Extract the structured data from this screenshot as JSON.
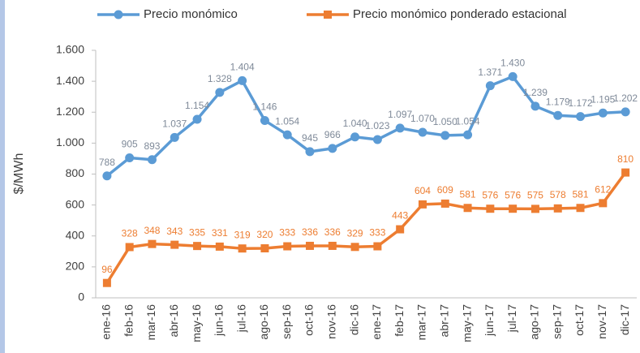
{
  "chart_data": {
    "type": "line",
    "y_label": "$/MWh",
    "categories": [
      "ene-16",
      "feb-16",
      "mar-16",
      "abr-16",
      "may-16",
      "jun-16",
      "jul-16",
      "ago-16",
      "sep-16",
      "oct-16",
      "nov-16",
      "dic-16",
      "ene-17",
      "feb-17",
      "mar-17",
      "abr-17",
      "may-17",
      "jun-17",
      "jul-17",
      "ago-17",
      "sep-17",
      "oct-17",
      "nov-17",
      "dic-17"
    ],
    "series": [
      {
        "name": "Precio monómico",
        "color": "#5b9bd5",
        "marker": "circle",
        "values": [
          788,
          905,
          893,
          1037,
          1154,
          1328,
          1404,
          1146,
          1054,
          945,
          966,
          1040,
          1023,
          1097,
          1070,
          1050,
          1054,
          1371,
          1430,
          1239,
          1179,
          1172,
          1195,
          1202
        ],
        "value_labels": [
          "788",
          "905",
          "893",
          "1.037",
          "1.154",
          "1.328",
          "1.404",
          "1.146",
          "1.054",
          "945",
          "966",
          "1.040",
          "1.023",
          "1.097",
          "1.070",
          "1.050",
          "1.054",
          "1.371",
          "1.430",
          "1.239",
          "1.179",
          "1.172",
          "1.195",
          "1.202"
        ],
        "label_color": "#7f8a99"
      },
      {
        "name": "Precio monómico ponderado estacional",
        "color": "#ed7d31",
        "marker": "square",
        "values": [
          96,
          328,
          348,
          343,
          335,
          331,
          319,
          320,
          333,
          336,
          336,
          329,
          333,
          443,
          604,
          609,
          581,
          576,
          576,
          575,
          578,
          581,
          612,
          810
        ],
        "label_color": "#ed7d31"
      }
    ],
    "ylim": [
      0,
      1600
    ],
    "yticks": [
      0,
      200,
      400,
      600,
      800,
      {
        "value": 1000,
        "label": "1.000"
      },
      {
        "value": 1200,
        "label": "1.200"
      },
      {
        "value": 1400,
        "label": "1.400"
      },
      {
        "value": 1600,
        "label": "1.600"
      }
    ],
    "grid": false,
    "legend": "top"
  }
}
